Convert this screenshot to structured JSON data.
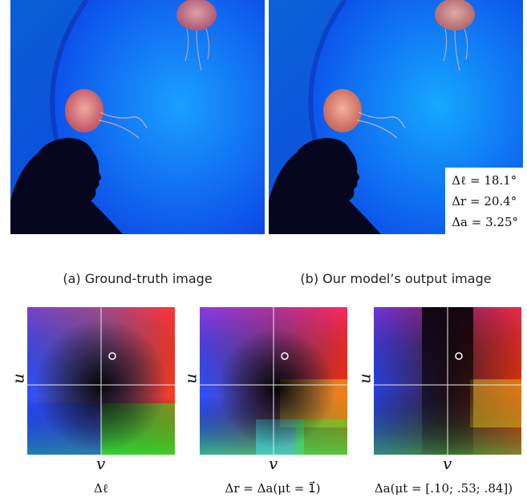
{
  "figure": {
    "caption_a": "(a) Ground-truth image",
    "caption_b": "(b) Our model’s output image",
    "metrics": {
      "delta_l": "Δℓ = 18.1°",
      "delta_r": "Δr = 20.4°",
      "delta_a": "Δa = 3.25°"
    },
    "plots": [
      {
        "u_label": "u",
        "v_label": "v",
        "caption": "Δℓ"
      },
      {
        "u_label": "u",
        "v_label": "v",
        "caption": "Δr = Δa(μt = 1⃗)"
      },
      {
        "u_label": "u",
        "v_label": "v",
        "caption": "Δa(μt = [.10; .53; .84])"
      }
    ]
  }
}
